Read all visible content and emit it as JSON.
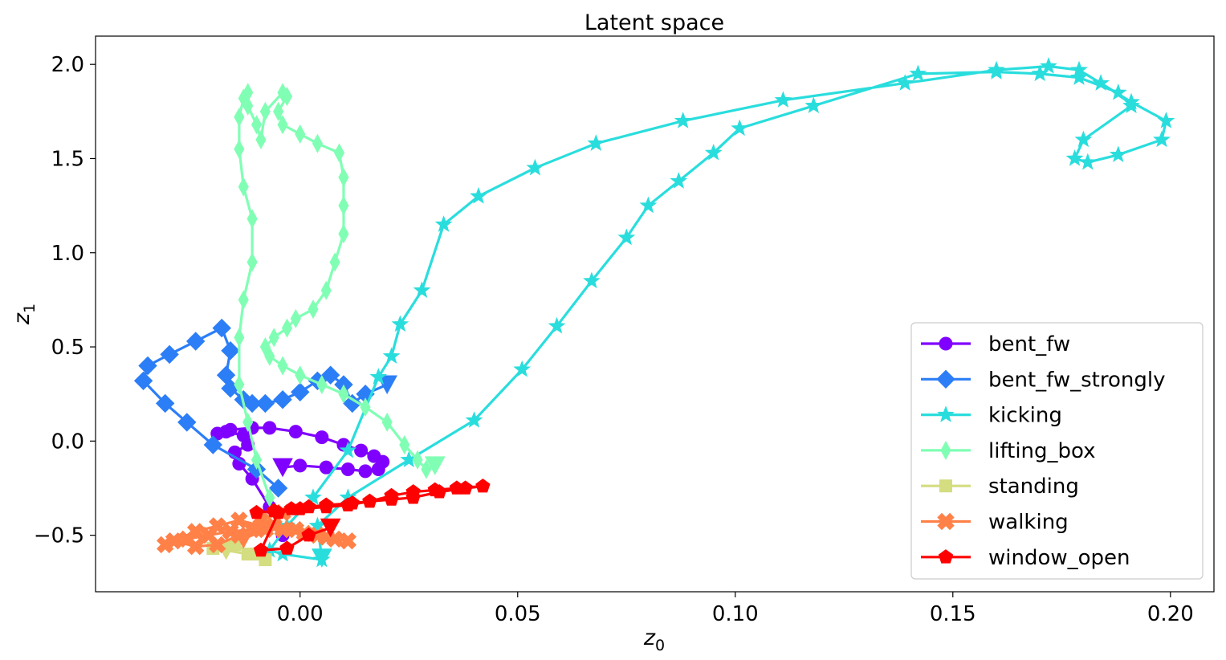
{
  "chart_data": {
    "type": "line",
    "title": "Latent space",
    "xlabel": {
      "main": "z",
      "sub": "0"
    },
    "ylabel": {
      "main": "z",
      "sub": "1"
    },
    "xlim": [
      -0.047,
      0.21
    ],
    "ylim": [
      -0.8,
      2.15
    ],
    "xticks": [
      0.0,
      0.05,
      0.1,
      0.15,
      0.2
    ],
    "xtick_labels": [
      "0.00",
      "0.05",
      "0.10",
      "0.15",
      "0.20"
    ],
    "yticks": [
      -0.5,
      0.0,
      0.5,
      1.0,
      1.5,
      2.0
    ],
    "ytick_labels": [
      "−0.5",
      "0.0",
      "0.5",
      "1.0",
      "1.5",
      "2.0"
    ],
    "grid": false,
    "legend_position": "lower-right",
    "series": [
      {
        "name": "bent_fw",
        "color": "#8000ff",
        "marker": "circle",
        "x": [
          -0.004,
          -0.007,
          -0.011,
          -0.014,
          -0.015,
          -0.012,
          -0.013,
          -0.017,
          -0.019,
          -0.016,
          -0.011,
          -0.007,
          -0.001,
          0.005,
          0.01,
          0.014,
          0.017,
          0.019,
          0.018,
          0.015,
          0.011,
          0.006,
          0.0,
          -0.004
        ],
        "y": [
          -0.5,
          -0.35,
          -0.2,
          -0.12,
          -0.06,
          -0.02,
          0.03,
          0.05,
          0.04,
          0.06,
          0.07,
          0.07,
          0.05,
          0.02,
          -0.02,
          -0.05,
          -0.08,
          -0.11,
          -0.15,
          -0.16,
          -0.15,
          -0.14,
          -0.13,
          -0.14
        ]
      },
      {
        "name": "bent_fw_strongly",
        "color": "#2c7ef7",
        "marker": "diamond",
        "x": [
          -0.005,
          -0.01,
          -0.02,
          -0.026,
          -0.031,
          -0.036,
          -0.035,
          -0.03,
          -0.024,
          -0.018,
          -0.016,
          -0.017,
          -0.016,
          -0.013,
          -0.011,
          -0.008,
          -0.004,
          0.0,
          0.004,
          0.007,
          0.01,
          0.012,
          0.015,
          0.02
        ],
        "y": [
          -0.25,
          -0.15,
          -0.02,
          0.1,
          0.2,
          0.32,
          0.4,
          0.46,
          0.53,
          0.6,
          0.48,
          0.35,
          0.28,
          0.22,
          0.2,
          0.2,
          0.22,
          0.26,
          0.32,
          0.35,
          0.3,
          0.2,
          0.25,
          0.3
        ]
      },
      {
        "name": "kicking",
        "color": "#2adddd",
        "marker": "star",
        "x": [
          0.005,
          -0.004,
          -0.007,
          -0.003,
          0.003,
          0.011,
          0.018,
          0.021,
          0.023,
          0.028,
          0.033,
          0.041,
          0.054,
          0.068,
          0.088,
          0.111,
          0.139,
          0.16,
          0.172,
          0.179,
          0.184,
          0.191,
          0.199,
          0.198,
          0.188,
          0.181,
          0.178,
          0.18,
          0.191,
          0.188,
          0.179,
          0.17,
          0.16,
          0.142,
          0.118,
          0.101,
          0.095,
          0.087,
          0.08,
          0.075,
          0.067,
          0.059,
          0.051,
          0.04,
          0.025,
          0.011,
          0.004,
          0.005
        ],
        "y": [
          -0.63,
          -0.6,
          -0.58,
          -0.45,
          -0.3,
          -0.05,
          0.34,
          0.45,
          0.62,
          0.8,
          1.15,
          1.3,
          1.45,
          1.58,
          1.7,
          1.81,
          1.9,
          1.97,
          1.99,
          1.97,
          1.9,
          1.8,
          1.7,
          1.6,
          1.52,
          1.48,
          1.5,
          1.6,
          1.78,
          1.85,
          1.93,
          1.95,
          1.96,
          1.95,
          1.78,
          1.66,
          1.53,
          1.38,
          1.25,
          1.08,
          0.85,
          0.61,
          0.38,
          0.11,
          -0.1,
          -0.3,
          -0.45,
          -0.62
        ]
      },
      {
        "name": "lifting_box",
        "color": "#80ffb4",
        "marker": "thin_diamond",
        "x": [
          -0.007,
          -0.01,
          -0.012,
          -0.014,
          -0.014,
          -0.013,
          -0.011,
          -0.011,
          -0.013,
          -0.014,
          -0.014,
          -0.013,
          -0.012,
          -0.012,
          -0.01,
          -0.009,
          -0.008,
          -0.004,
          -0.003,
          -0.005,
          -0.004,
          0.0,
          0.004,
          0.009,
          0.01,
          0.01,
          0.01,
          0.008,
          0.006,
          0.003,
          -0.001,
          -0.003,
          -0.006,
          -0.008,
          -0.007,
          -0.004,
          0.0,
          0.005,
          0.01,
          0.015,
          0.02,
          0.024,
          0.027,
          0.029,
          0.031
        ],
        "y": [
          -0.3,
          -0.1,
          0.1,
          0.3,
          0.55,
          0.75,
          0.95,
          1.18,
          1.35,
          1.55,
          1.72,
          1.82,
          1.85,
          1.78,
          1.68,
          1.6,
          1.75,
          1.85,
          1.83,
          1.75,
          1.68,
          1.63,
          1.58,
          1.53,
          1.4,
          1.25,
          1.1,
          0.95,
          0.8,
          0.7,
          0.65,
          0.6,
          0.55,
          0.5,
          0.45,
          0.4,
          0.35,
          0.3,
          0.25,
          0.18,
          0.1,
          -0.02,
          -0.1,
          -0.15,
          -0.13
        ]
      },
      {
        "name": "standing",
        "color": "#d4dd80",
        "marker": "square",
        "x": [
          -0.02,
          -0.015,
          -0.01,
          -0.008,
          -0.012,
          -0.017
        ],
        "y": [
          -0.57,
          -0.55,
          -0.6,
          -0.63,
          -0.6,
          -0.58
        ]
      },
      {
        "name": "walking",
        "color": "#ff8148",
        "marker": "pentagon_x",
        "x": [
          -0.031,
          -0.026,
          -0.021,
          -0.016,
          -0.011,
          -0.006,
          -0.001,
          0.004,
          0.008,
          0.011,
          0.006,
          0.001,
          -0.004,
          -0.009,
          -0.014,
          -0.019,
          -0.024,
          -0.029,
          -0.024,
          -0.019,
          -0.014,
          -0.009,
          -0.004,
          -0.008,
          -0.013
        ],
        "y": [
          -0.55,
          -0.52,
          -0.5,
          -0.48,
          -0.47,
          -0.45,
          -0.47,
          -0.5,
          -0.52,
          -0.53,
          -0.51,
          -0.49,
          -0.47,
          -0.45,
          -0.42,
          -0.45,
          -0.48,
          -0.53,
          -0.56,
          -0.55,
          -0.5,
          -0.42,
          -0.38,
          -0.47,
          -0.52
        ]
      },
      {
        "name": "window_open",
        "color": "#ff0000",
        "marker": "pentagon",
        "x": [
          -0.01,
          -0.006,
          -0.002,
          0.002,
          0.006,
          0.012,
          0.016,
          0.021,
          0.026,
          0.031,
          0.036,
          0.042,
          0.038,
          0.032,
          0.026,
          0.021,
          0.016,
          0.011,
          0.006,
          0.0,
          -0.005,
          -0.009,
          -0.003,
          0.002,
          0.007
        ],
        "y": [
          -0.38,
          -0.37,
          -0.36,
          -0.35,
          -0.34,
          -0.33,
          -0.32,
          -0.29,
          -0.27,
          -0.26,
          -0.25,
          -0.24,
          -0.25,
          -0.27,
          -0.3,
          -0.31,
          -0.32,
          -0.34,
          -0.35,
          -0.36,
          -0.38,
          -0.58,
          -0.57,
          -0.5,
          -0.46
        ]
      }
    ]
  }
}
